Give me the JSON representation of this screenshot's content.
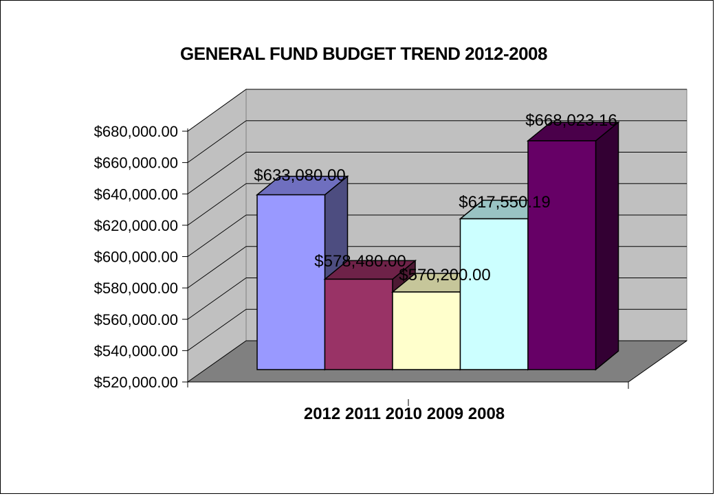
{
  "chart_data": {
    "type": "bar",
    "title": "GENERAL FUND BUDGET TREND 2012-2008",
    "xlabel": "",
    "ylabel": "",
    "categories_label": "2012 2011 2010 2009 2008",
    "categories": [
      "2012",
      "2011",
      "2010",
      "2009",
      "2008"
    ],
    "series": [
      {
        "values": [
          633080.0,
          578480.0,
          570200.0,
          617550.19,
          668023.16
        ],
        "labels": [
          "$633,080.00",
          "$578,480.00",
          "$570,200.00",
          "$617,550.19",
          "$668,023.16"
        ]
      }
    ],
    "ylim": [
      520000,
      680000
    ],
    "yticks": [
      520000,
      540000,
      560000,
      580000,
      600000,
      620000,
      640000,
      660000,
      680000
    ],
    "ytick_labels": [
      "$520,000.00",
      "$540,000.00",
      "$560,000.00",
      "$580,000.00",
      "$600,000.00",
      "$620,000.00",
      "$640,000.00",
      "$660,000.00",
      "$680,000.00"
    ],
    "grid": true,
    "legend": "none",
    "style": "3d-column",
    "colors": {
      "wall": "#c0c0c0",
      "floor": "#808080",
      "bars": [
        "#9999ff",
        "#993366",
        "#ffffcc",
        "#ccffff",
        "#660066"
      ],
      "bar_tops": [
        "#6f6fbf",
        "#6e2248",
        "#c6c69a",
        "#99c3c3",
        "#4a004a"
      ],
      "bar_sides": [
        "#4d4d80",
        "#4d1933",
        "#808066",
        "#668080",
        "#330033"
      ]
    }
  }
}
